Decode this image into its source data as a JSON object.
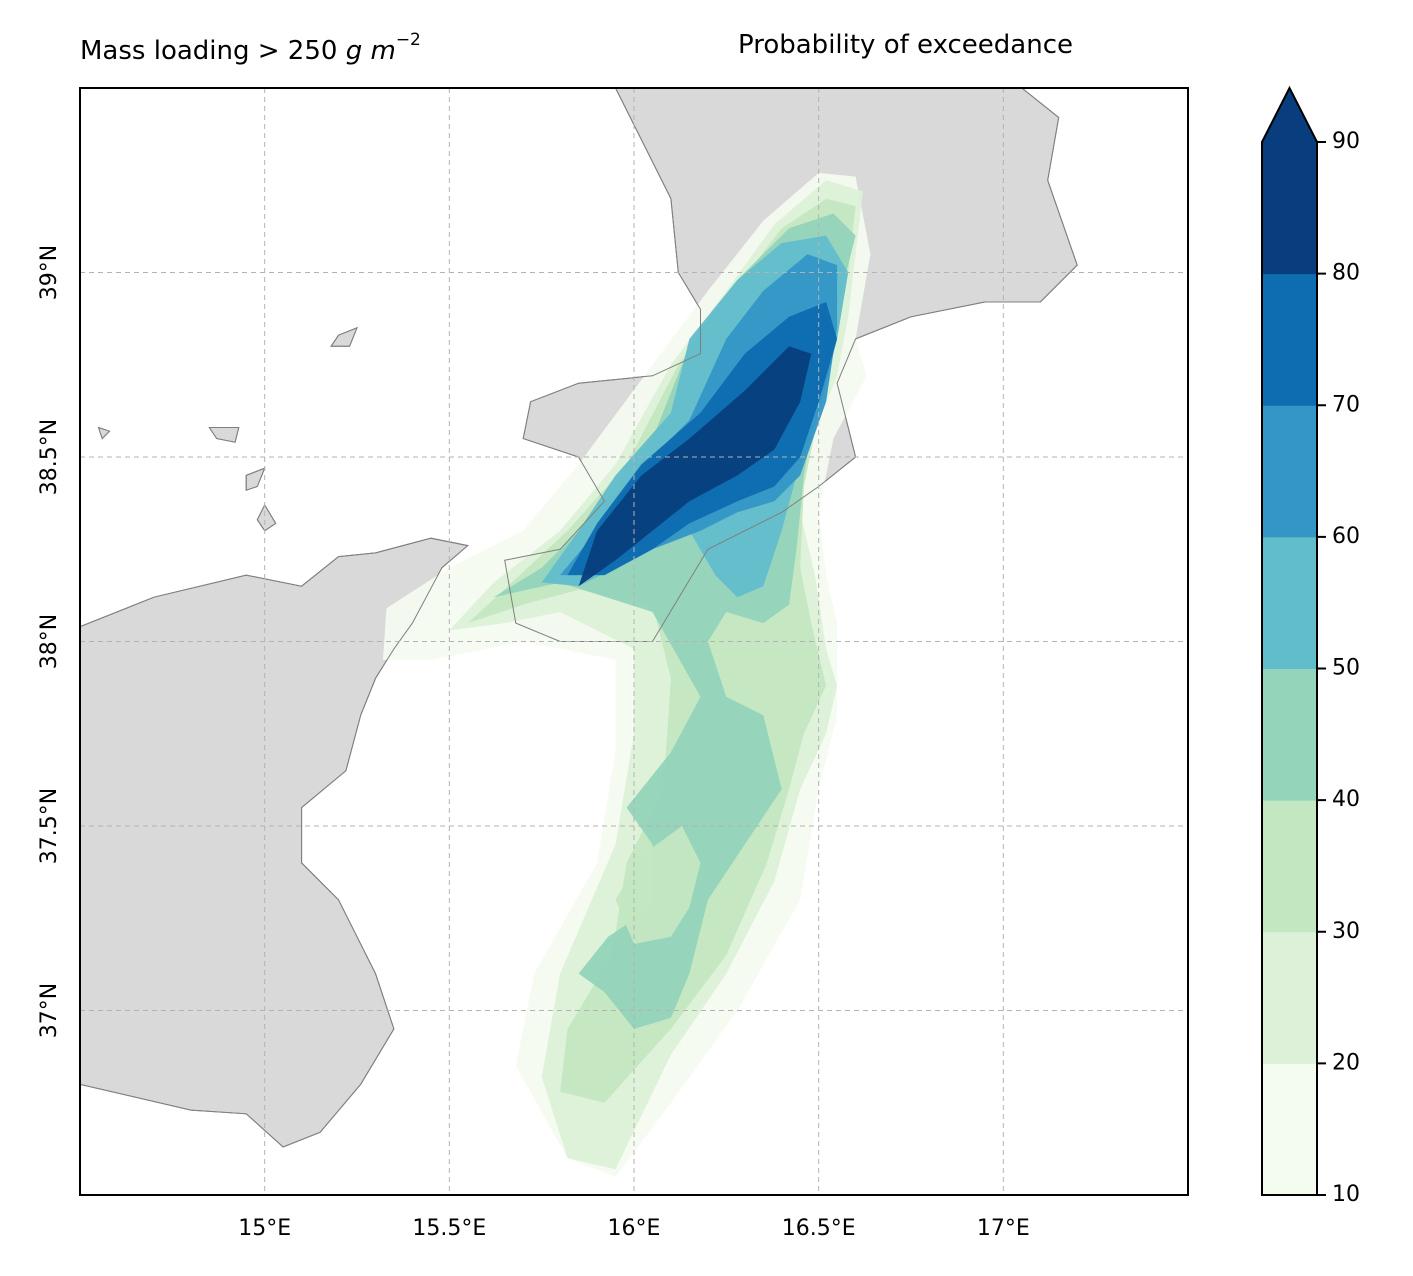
{
  "title": {
    "prefix": "Mass loading > 250 ",
    "unit_g": "g",
    "unit_m": "m",
    "unit_exp": "−2",
    "right": "Probability of exceedance"
  },
  "axes": {
    "x_ticks": [
      {
        "value": 15.0,
        "label": "15°E"
      },
      {
        "value": 15.5,
        "label": "15.5°E"
      },
      {
        "value": 16.0,
        "label": "16°E"
      },
      {
        "value": 16.5,
        "label": "16.5°E"
      },
      {
        "value": 17.0,
        "label": "17°E"
      }
    ],
    "y_ticks": [
      {
        "value": 37.0,
        "label": "37°N"
      },
      {
        "value": 37.5,
        "label": "37.5°N"
      },
      {
        "value": 38.0,
        "label": "38°N"
      },
      {
        "value": 38.5,
        "label": "38.5°N"
      },
      {
        "value": 39.0,
        "label": "39°N"
      }
    ],
    "xlim": [
      14.5,
      17.5
    ],
    "ylim": [
      36.5,
      39.5
    ],
    "grid": true
  },
  "colorbar": {
    "levels": [
      10,
      20,
      30,
      40,
      50,
      60,
      70,
      80,
      90
    ],
    "colors": [
      "#f4fbef",
      "#dcf1d8",
      "#c3e7c1",
      "#94d4bb",
      "#62bdcb",
      "#3496c6",
      "#0e6cb0",
      "#083e7d"
    ],
    "extend": "max",
    "land_color": "#d9d9d9"
  },
  "chart_data": {
    "type": "heatmap",
    "description_levels": "filled contours of probability (%)",
    "title": "Probability of exceedance",
    "variable": "Mass loading > 250 g m^-2",
    "contours": [
      {
        "level": 10,
        "points": [
          [
            15.33,
            38.09
          ],
          [
            15.5,
            38.2
          ],
          [
            15.7,
            38.3
          ],
          [
            15.85,
            38.48
          ],
          [
            16.05,
            38.75
          ],
          [
            16.2,
            38.95
          ],
          [
            16.35,
            39.14
          ],
          [
            16.5,
            39.27
          ],
          [
            16.6,
            39.26
          ],
          [
            16.64,
            39.05
          ],
          [
            16.6,
            38.82
          ],
          [
            16.63,
            38.72
          ],
          [
            16.54,
            38.55
          ],
          [
            16.5,
            38.35
          ],
          [
            16.52,
            38.18
          ],
          [
            16.55,
            38.05
          ],
          [
            16.55,
            37.8
          ],
          [
            16.5,
            37.6
          ],
          [
            16.45,
            37.3
          ],
          [
            16.28,
            37.0
          ],
          [
            16.1,
            36.75
          ],
          [
            15.95,
            36.55
          ],
          [
            15.82,
            36.6
          ],
          [
            15.68,
            36.85
          ],
          [
            15.73,
            37.1
          ],
          [
            15.9,
            37.4
          ],
          [
            15.95,
            37.7
          ],
          [
            15.95,
            37.95
          ],
          [
            15.7,
            38.0
          ],
          [
            15.45,
            37.95
          ],
          [
            15.32,
            37.95
          ]
        ]
      },
      {
        "level": 20,
        "points": [
          [
            15.5,
            38.03
          ],
          [
            15.62,
            38.16
          ],
          [
            15.8,
            38.3
          ],
          [
            15.95,
            38.48
          ],
          [
            16.1,
            38.75
          ],
          [
            16.25,
            38.95
          ],
          [
            16.38,
            39.13
          ],
          [
            16.52,
            39.25
          ],
          [
            16.62,
            39.22
          ],
          [
            16.6,
            39.05
          ],
          [
            16.58,
            38.88
          ],
          [
            16.55,
            38.72
          ],
          [
            16.48,
            38.55
          ],
          [
            16.45,
            38.35
          ],
          [
            16.49,
            38.18
          ],
          [
            16.52,
            37.98
          ],
          [
            16.55,
            37.88
          ],
          [
            16.52,
            37.75
          ],
          [
            16.45,
            37.6
          ],
          [
            16.38,
            37.35
          ],
          [
            16.25,
            37.1
          ],
          [
            16.1,
            36.88
          ],
          [
            15.95,
            36.57
          ],
          [
            15.82,
            36.6
          ],
          [
            15.75,
            36.82
          ],
          [
            15.8,
            37.1
          ],
          [
            15.95,
            37.45
          ],
          [
            16.0,
            37.75
          ],
          [
            16.0,
            37.98
          ],
          [
            15.8,
            38.08
          ],
          [
            15.65,
            38.05
          ]
        ]
      },
      {
        "level": 30,
        "points": [
          [
            15.55,
            38.05
          ],
          [
            15.68,
            38.17
          ],
          [
            15.82,
            38.3
          ],
          [
            15.98,
            38.48
          ],
          [
            16.12,
            38.75
          ],
          [
            16.27,
            38.95
          ],
          [
            16.4,
            39.12
          ],
          [
            16.52,
            39.2
          ],
          [
            16.6,
            39.18
          ],
          [
            16.58,
            39.0
          ],
          [
            16.55,
            38.82
          ],
          [
            16.5,
            38.62
          ],
          [
            16.46,
            38.42
          ],
          [
            16.45,
            38.2
          ],
          [
            16.48,
            38.05
          ],
          [
            16.52,
            37.88
          ],
          [
            16.46,
            37.75
          ],
          [
            16.42,
            37.6
          ],
          [
            16.36,
            37.4
          ],
          [
            16.25,
            37.15
          ],
          [
            16.1,
            36.95
          ],
          [
            15.92,
            36.75
          ],
          [
            15.8,
            36.78
          ],
          [
            15.82,
            36.95
          ],
          [
            15.94,
            37.15
          ],
          [
            15.98,
            37.4
          ],
          [
            16.08,
            37.6
          ],
          [
            16.1,
            37.9
          ],
          [
            16.05,
            38.1
          ],
          [
            15.85,
            38.14
          ],
          [
            15.7,
            38.1
          ]
        ]
      },
      {
        "level": 40,
        "points": [
          [
            15.62,
            38.12
          ],
          [
            15.75,
            38.2
          ],
          [
            15.9,
            38.35
          ],
          [
            16.05,
            38.55
          ],
          [
            16.15,
            38.8
          ],
          [
            16.28,
            38.98
          ],
          [
            16.42,
            39.12
          ],
          [
            16.54,
            39.16
          ],
          [
            16.6,
            39.1
          ],
          [
            16.55,
            38.9
          ],
          [
            16.5,
            38.68
          ],
          [
            16.46,
            38.45
          ],
          [
            16.44,
            38.25
          ],
          [
            16.42,
            38.1
          ],
          [
            16.35,
            38.05
          ],
          [
            16.25,
            38.08
          ],
          [
            16.2,
            38.0
          ],
          [
            16.25,
            37.85
          ],
          [
            16.35,
            37.8
          ],
          [
            16.4,
            37.6
          ],
          [
            16.3,
            37.45
          ],
          [
            16.2,
            37.3
          ],
          [
            16.15,
            37.1
          ],
          [
            16.1,
            36.98
          ],
          [
            16.0,
            36.95
          ],
          [
            15.92,
            37.05
          ],
          [
            15.85,
            37.1
          ],
          [
            15.93,
            37.2
          ],
          [
            16.05,
            37.28
          ],
          [
            16.05,
            37.45
          ],
          [
            15.98,
            37.55
          ],
          [
            16.1,
            37.7
          ],
          [
            16.18,
            37.85
          ],
          [
            16.05,
            38.08
          ],
          [
            15.8,
            38.16
          ]
        ]
      },
      {
        "level": 50,
        "points": [
          [
            15.75,
            38.16
          ],
          [
            15.85,
            38.3
          ],
          [
            15.95,
            38.45
          ],
          [
            16.1,
            38.62
          ],
          [
            16.15,
            38.82
          ],
          [
            16.28,
            38.98
          ],
          [
            16.4,
            39.08
          ],
          [
            16.52,
            39.1
          ],
          [
            16.58,
            39.0
          ],
          [
            16.55,
            38.82
          ],
          [
            16.5,
            38.62
          ],
          [
            16.44,
            38.45
          ],
          [
            16.4,
            38.3
          ],
          [
            16.35,
            38.15
          ],
          [
            16.28,
            38.12
          ],
          [
            16.22,
            38.18
          ],
          [
            16.15,
            38.3
          ],
          [
            16.05,
            38.25
          ],
          [
            15.95,
            38.2
          ],
          [
            15.85,
            38.15
          ]
        ]
      },
      {
        "level": 60,
        "points": [
          [
            15.8,
            38.18
          ],
          [
            15.9,
            38.3
          ],
          [
            16.0,
            38.45
          ],
          [
            16.15,
            38.6
          ],
          [
            16.25,
            38.82
          ],
          [
            16.35,
            38.95
          ],
          [
            16.47,
            39.05
          ],
          [
            16.55,
            39.02
          ],
          [
            16.55,
            38.85
          ],
          [
            16.52,
            38.65
          ],
          [
            16.45,
            38.45
          ],
          [
            16.38,
            38.38
          ],
          [
            16.28,
            38.35
          ],
          [
            16.18,
            38.3
          ],
          [
            16.05,
            38.25
          ],
          [
            15.92,
            38.18
          ]
        ]
      },
      {
        "level": 70,
        "points": [
          [
            15.82,
            38.18
          ],
          [
            15.9,
            38.32
          ],
          [
            16.02,
            38.48
          ],
          [
            16.18,
            38.62
          ],
          [
            16.3,
            38.78
          ],
          [
            16.42,
            38.88
          ],
          [
            16.52,
            38.92
          ],
          [
            16.55,
            38.82
          ],
          [
            16.5,
            38.65
          ],
          [
            16.45,
            38.5
          ],
          [
            16.38,
            38.42
          ],
          [
            16.28,
            38.38
          ],
          [
            16.15,
            38.32
          ],
          [
            16.05,
            38.25
          ],
          [
            15.92,
            38.18
          ]
        ]
      },
      {
        "level": 80,
        "points": [
          [
            15.85,
            38.15
          ],
          [
            15.9,
            38.3
          ],
          [
            16.02,
            38.45
          ],
          [
            16.15,
            38.55
          ],
          [
            16.3,
            38.68
          ],
          [
            16.42,
            38.8
          ],
          [
            16.48,
            38.78
          ],
          [
            16.45,
            38.65
          ],
          [
            16.38,
            38.52
          ],
          [
            16.28,
            38.45
          ],
          [
            16.15,
            38.38
          ],
          [
            16.05,
            38.3
          ],
          [
            15.95,
            38.22
          ]
        ]
      },
      {
        "level": 30,
        "points": [
          [
            16.0,
            37.18
          ],
          [
            16.1,
            37.2
          ],
          [
            16.15,
            37.28
          ],
          [
            16.18,
            37.4
          ],
          [
            16.13,
            37.5
          ],
          [
            16.02,
            37.42
          ],
          [
            15.95,
            37.3
          ]
        ]
      }
    ],
    "land": [
      {
        "name": "sicily",
        "points": [
          [
            14.5,
            38.04
          ],
          [
            14.7,
            38.12
          ],
          [
            14.95,
            38.18
          ],
          [
            15.1,
            38.15
          ],
          [
            15.2,
            38.23
          ],
          [
            15.3,
            38.24
          ],
          [
            15.45,
            38.28
          ],
          [
            15.55,
            38.26
          ],
          [
            15.48,
            38.2
          ],
          [
            15.4,
            38.05
          ],
          [
            15.35,
            37.98
          ],
          [
            15.3,
            37.9
          ],
          [
            15.26,
            37.8
          ],
          [
            15.22,
            37.65
          ],
          [
            15.1,
            37.55
          ],
          [
            15.1,
            37.4
          ],
          [
            15.2,
            37.3
          ],
          [
            15.25,
            37.2
          ],
          [
            15.3,
            37.1
          ],
          [
            15.35,
            36.95
          ],
          [
            15.26,
            36.8
          ],
          [
            15.15,
            36.67
          ],
          [
            15.05,
            36.63
          ],
          [
            14.95,
            36.72
          ],
          [
            14.8,
            36.73
          ],
          [
            14.5,
            36.8
          ]
        ]
      },
      {
        "name": "calabria",
        "points": [
          [
            15.95,
            39.5
          ],
          [
            17.05,
            39.5
          ],
          [
            17.15,
            39.42
          ],
          [
            17.12,
            39.25
          ],
          [
            17.2,
            39.02
          ],
          [
            17.1,
            38.92
          ],
          [
            16.95,
            38.92
          ],
          [
            16.75,
            38.88
          ],
          [
            16.6,
            38.82
          ],
          [
            16.55,
            38.7
          ],
          [
            16.6,
            38.5
          ],
          [
            16.5,
            38.42
          ],
          [
            16.4,
            38.35
          ],
          [
            16.2,
            38.25
          ],
          [
            16.05,
            38.0
          ],
          [
            15.8,
            38.0
          ],
          [
            15.68,
            38.05
          ],
          [
            15.65,
            38.22
          ],
          [
            15.8,
            38.25
          ],
          [
            15.92,
            38.38
          ],
          [
            15.85,
            38.5
          ],
          [
            15.7,
            38.55
          ],
          [
            15.72,
            38.65
          ],
          [
            15.85,
            38.7
          ],
          [
            16.05,
            38.72
          ],
          [
            16.18,
            38.78
          ],
          [
            16.18,
            38.9
          ],
          [
            16.12,
            39.0
          ],
          [
            16.1,
            39.2
          ],
          [
            16.0,
            39.4
          ]
        ]
      },
      {
        "name": "island-1",
        "points": [
          [
            15.2,
            38.83
          ],
          [
            15.25,
            38.85
          ],
          [
            15.23,
            38.8
          ],
          [
            15.18,
            38.8
          ]
        ]
      },
      {
        "name": "island-2",
        "points": [
          [
            14.85,
            38.58
          ],
          [
            14.93,
            38.58
          ],
          [
            14.92,
            38.54
          ],
          [
            14.87,
            38.55
          ]
        ]
      },
      {
        "name": "island-3",
        "points": [
          [
            14.95,
            38.45
          ],
          [
            15.0,
            38.47
          ],
          [
            14.98,
            38.42
          ],
          [
            14.95,
            38.41
          ]
        ]
      },
      {
        "name": "island-4",
        "points": [
          [
            14.98,
            38.33
          ],
          [
            15.0,
            38.37
          ],
          [
            15.03,
            38.32
          ],
          [
            15.0,
            38.3
          ]
        ]
      },
      {
        "name": "island-5",
        "points": [
          [
            14.55,
            38.58
          ],
          [
            14.58,
            38.57
          ],
          [
            14.56,
            38.55
          ]
        ]
      }
    ]
  }
}
